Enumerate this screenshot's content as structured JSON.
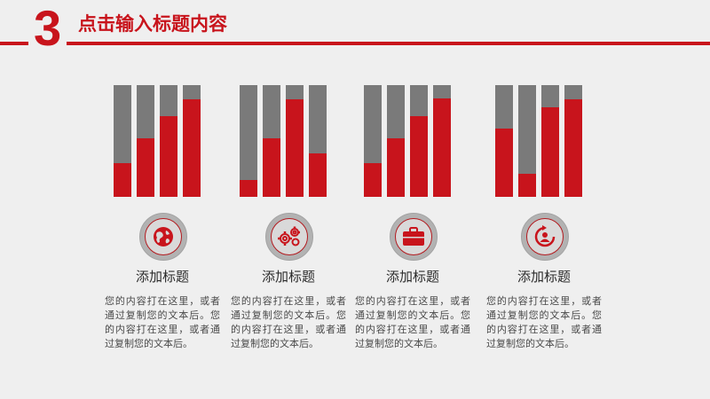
{
  "header": {
    "number": "3",
    "title": "点击输入标题内容"
  },
  "colors": {
    "accent": "#c8141c",
    "bar_track": "#7a7a7a",
    "background": "#efefef"
  },
  "columns": [
    {
      "icon": "globe-icon",
      "title": "添加标题",
      "text": "您的内容打在这里，或者通过复制您的文本后。您的内容打在这里，或者通过复制您的文本后。",
      "bar_levels": [
        0.3,
        0.52,
        0.72,
        0.87
      ]
    },
    {
      "icon": "gears-icon",
      "title": "添加标题",
      "text": "您的内容打在这里，或者通过复制您的文本后。您的内容打在这里，或者通过复制您的文本后。",
      "bar_levels": [
        0.15,
        0.52,
        0.87,
        0.39
      ]
    },
    {
      "icon": "briefcase-icon",
      "title": "添加标题",
      "text": "您的内容打在这里，或者通过复制您的文本后。您的内容打在这里，或者通过复制您的文本后。",
      "bar_levels": [
        0.3,
        0.52,
        0.72,
        0.88
      ]
    },
    {
      "icon": "refresh-person-icon",
      "title": "添加标题",
      "text": "您的内容打在这里，或者通过复制您的文本后。您的内容打在这里，或者通过复制您的文本后。",
      "bar_levels": [
        0.61,
        0.21,
        0.8,
        0.87
      ]
    }
  ]
}
